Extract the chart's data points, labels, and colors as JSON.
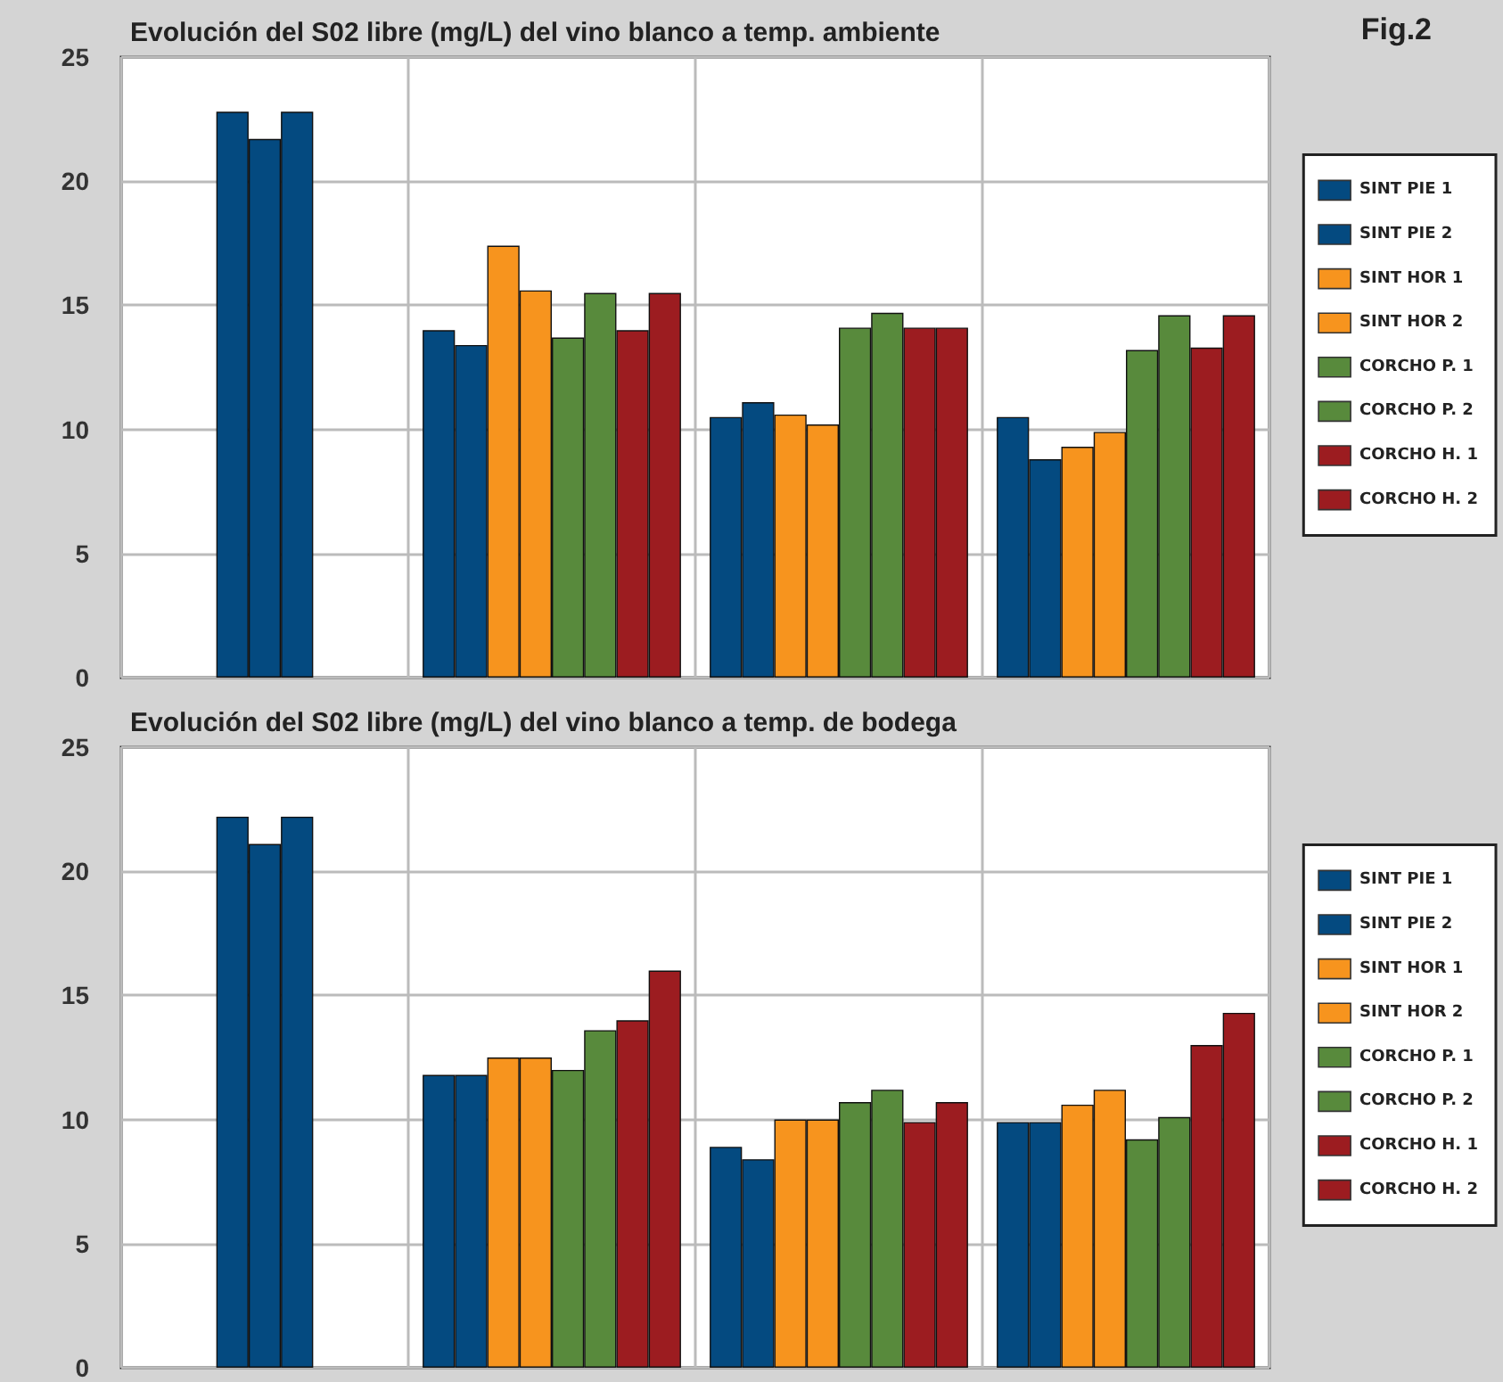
{
  "chart_data": [
    {
      "type": "bar",
      "title": "Evolución del S02 libre (mg/L) del vino blanco a temp. ambiente",
      "annotations": [
        "Fig.2"
      ],
      "categories": [
        null,
        null,
        null,
        null
      ],
      "ylim": [
        0,
        25
      ],
      "yticks": [
        0,
        5,
        10,
        15,
        20,
        25
      ],
      "grid": true,
      "legend": "right",
      "series": [
        {
          "color": "#044a80",
          "values": [
            22.8,
            null,
            null,
            null
          ]
        },
        {
          "color": "#044a80",
          "values": [
            21.7,
            null,
            null,
            null
          ]
        },
        {
          "color": "#044a80",
          "values": [
            22.8,
            null,
            null,
            null
          ]
        },
        {
          "name": "SINT PIE 1",
          "color": "#044a80",
          "values": [
            null,
            14.0,
            10.5,
            10.5
          ]
        },
        {
          "name": "SINT PIE 2",
          "color": "#044a80",
          "values": [
            null,
            13.4,
            11.1,
            8.8
          ]
        },
        {
          "name": "SINT HOR 1",
          "color": "#f7941e",
          "values": [
            null,
            17.4,
            10.6,
            9.3
          ]
        },
        {
          "name": "SINT HOR 2",
          "color": "#f7941e",
          "values": [
            null,
            15.6,
            10.2,
            9.9
          ]
        },
        {
          "name": "CORCHO P. 1",
          "color": "#588a3c",
          "values": [
            null,
            13.7,
            14.1,
            13.2
          ]
        },
        {
          "name": "CORCHO P. 2",
          "color": "#588a3c",
          "values": [
            null,
            15.5,
            14.7,
            14.6
          ]
        },
        {
          "name": "CORCHO H. 1",
          "color": "#9c1c20",
          "values": [
            null,
            14.0,
            14.1,
            13.3
          ]
        },
        {
          "name": "CORCHO H. 2",
          "color": "#9c1c20",
          "values": [
            null,
            15.5,
            14.1,
            14.6
          ]
        }
      ]
    },
    {
      "type": "bar",
      "title": "Evolución del S02 libre (mg/L) del vino blanco a temp. de bodega",
      "categories": [
        null,
        null,
        null,
        null
      ],
      "ylim": [
        0,
        25
      ],
      "yticks": [
        0,
        5,
        10,
        15,
        20,
        25
      ],
      "grid": true,
      "legend": "right",
      "series": [
        {
          "color": "#044a80",
          "values": [
            22.2,
            null,
            null,
            null
          ]
        },
        {
          "color": "#044a80",
          "values": [
            21.1,
            null,
            null,
            null
          ]
        },
        {
          "color": "#044a80",
          "values": [
            22.2,
            null,
            null,
            null
          ]
        },
        {
          "name": "SINT PIE 1",
          "color": "#044a80",
          "values": [
            null,
            11.8,
            8.9,
            9.9
          ]
        },
        {
          "name": "SINT PIE 2",
          "color": "#044a80",
          "values": [
            null,
            11.8,
            8.4,
            9.9
          ]
        },
        {
          "name": "SINT HOR 1",
          "color": "#f7941e",
          "values": [
            null,
            12.5,
            10.0,
            10.6
          ]
        },
        {
          "name": "SINT HOR 2",
          "color": "#f7941e",
          "values": [
            null,
            12.5,
            10.0,
            11.2
          ]
        },
        {
          "name": "CORCHO P. 1",
          "color": "#588a3c",
          "values": [
            null,
            12.0,
            10.7,
            9.2
          ]
        },
        {
          "name": "CORCHO P. 2",
          "color": "#588a3c",
          "values": [
            null,
            13.6,
            11.2,
            10.1
          ]
        },
        {
          "name": "CORCHO H. 1",
          "color": "#9c1c20",
          "values": [
            null,
            14.0,
            9.9,
            13.0
          ]
        },
        {
          "name": "CORCHO H. 2",
          "color": "#9c1c20",
          "values": [
            null,
            16.0,
            10.7,
            14.3
          ]
        }
      ]
    }
  ]
}
